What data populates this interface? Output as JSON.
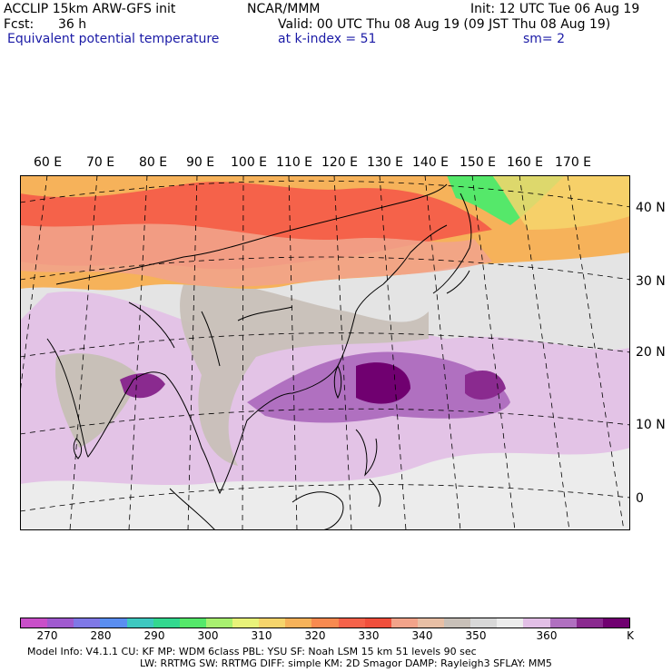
{
  "header": {
    "model": "ACCLIP 15km ARW-GFS init",
    "org": "NCAR/MMM",
    "init": "Init: 12 UTC Tue 06 Aug 19",
    "fcst_label": "Fcst:",
    "fcst_value": "36 h",
    "valid": "Valid: 00 UTC Thu 08 Aug 19 (09 JST Thu 08 Aug 19)",
    "field": "Equivalent potential temperature",
    "level": "at k-index =  51",
    "smoothing": "sm= 2"
  },
  "axes": {
    "lon_labels": [
      "60 E",
      "70 E",
      "80 E",
      "90 E",
      "100 E",
      "110 E",
      "120 E",
      "130 E",
      "140 E",
      "150 E",
      "160 E",
      "170 E"
    ],
    "lat_labels": [
      "40 N",
      "30 N",
      "20 N",
      "10 N",
      "0"
    ]
  },
  "colorbar": {
    "colors": [
      "#c94fc9",
      "#a05acf",
      "#7f78e6",
      "#5a8ef0",
      "#3ec8c0",
      "#33d88f",
      "#55e86a",
      "#a8f070",
      "#e8f27a",
      "#f6d56c",
      "#f6b25a",
      "#f88a50",
      "#f5624a",
      "#f04f3c",
      "#f2a38a",
      "#e8bfa5",
      "#c8c0b8",
      "#d8d8d8",
      "#ececec",
      "#e2bfe6",
      "#b070c0",
      "#8a2a8f",
      "#700070"
    ],
    "tick_labels": [
      "270",
      "280",
      "290",
      "300",
      "310",
      "320",
      "330",
      "340",
      "350",
      "360"
    ],
    "unit": "K"
  },
  "footer": {
    "line1": "Model Info: V4.1.1     CU: KF        MP: WDM 6class   PBL: YSU          SF: Noah LSM     15 km    51 levels    90 sec",
    "line2": "LW: RRTMG    SW: RRTMG   DIFF: simple KM: 2D Smagor DAMP: Rayleigh3  SFLAY: MM5"
  }
}
